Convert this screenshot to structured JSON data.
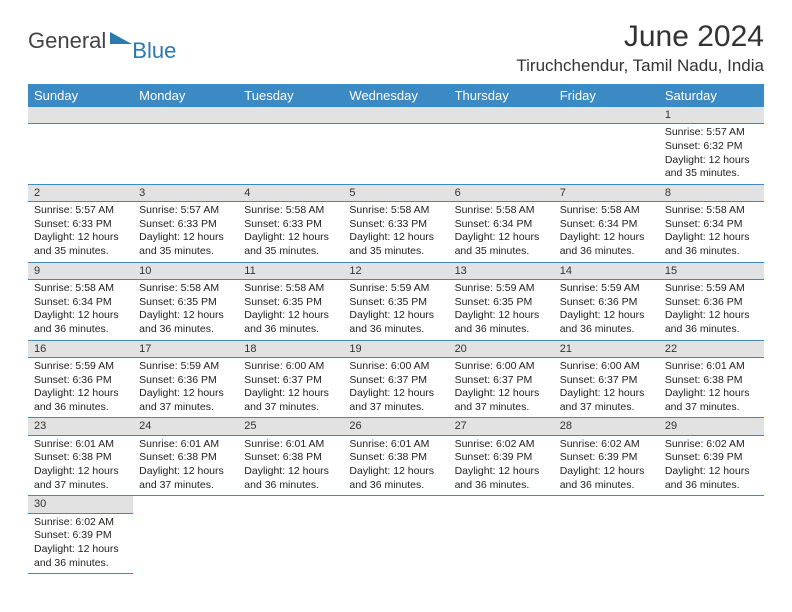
{
  "logo": {
    "text1": "General",
    "text2": "Blue",
    "color1": "#444444",
    "color2": "#2a7ab0"
  },
  "title": "June 2024",
  "location": "Tiruchchendur, Tamil Nadu, India",
  "calendar": {
    "header_bg": "#3b8ac4",
    "header_fg": "#ffffff",
    "daynum_bg": "#e2e2e2",
    "cell_bg": "#ffffff",
    "border_color": "#3b8ac4",
    "font_size_header": 13,
    "font_size_daynum": 11,
    "font_size_detail": 10.5,
    "columns": [
      "Sunday",
      "Monday",
      "Tuesday",
      "Wednesday",
      "Thursday",
      "Friday",
      "Saturday"
    ],
    "weeks": [
      [
        null,
        null,
        null,
        null,
        null,
        null,
        {
          "d": "1",
          "sr": "5:57 AM",
          "ss": "6:32 PM",
          "dl": "12 hours and 35 minutes."
        }
      ],
      [
        {
          "d": "2",
          "sr": "5:57 AM",
          "ss": "6:33 PM",
          "dl": "12 hours and 35 minutes."
        },
        {
          "d": "3",
          "sr": "5:57 AM",
          "ss": "6:33 PM",
          "dl": "12 hours and 35 minutes."
        },
        {
          "d": "4",
          "sr": "5:58 AM",
          "ss": "6:33 PM",
          "dl": "12 hours and 35 minutes."
        },
        {
          "d": "5",
          "sr": "5:58 AM",
          "ss": "6:33 PM",
          "dl": "12 hours and 35 minutes."
        },
        {
          "d": "6",
          "sr": "5:58 AM",
          "ss": "6:34 PM",
          "dl": "12 hours and 35 minutes."
        },
        {
          "d": "7",
          "sr": "5:58 AM",
          "ss": "6:34 PM",
          "dl": "12 hours and 36 minutes."
        },
        {
          "d": "8",
          "sr": "5:58 AM",
          "ss": "6:34 PM",
          "dl": "12 hours and 36 minutes."
        }
      ],
      [
        {
          "d": "9",
          "sr": "5:58 AM",
          "ss": "6:34 PM",
          "dl": "12 hours and 36 minutes."
        },
        {
          "d": "10",
          "sr": "5:58 AM",
          "ss": "6:35 PM",
          "dl": "12 hours and 36 minutes."
        },
        {
          "d": "11",
          "sr": "5:58 AM",
          "ss": "6:35 PM",
          "dl": "12 hours and 36 minutes."
        },
        {
          "d": "12",
          "sr": "5:59 AM",
          "ss": "6:35 PM",
          "dl": "12 hours and 36 minutes."
        },
        {
          "d": "13",
          "sr": "5:59 AM",
          "ss": "6:35 PM",
          "dl": "12 hours and 36 minutes."
        },
        {
          "d": "14",
          "sr": "5:59 AM",
          "ss": "6:36 PM",
          "dl": "12 hours and 36 minutes."
        },
        {
          "d": "15",
          "sr": "5:59 AM",
          "ss": "6:36 PM",
          "dl": "12 hours and 36 minutes."
        }
      ],
      [
        {
          "d": "16",
          "sr": "5:59 AM",
          "ss": "6:36 PM",
          "dl": "12 hours and 36 minutes."
        },
        {
          "d": "17",
          "sr": "5:59 AM",
          "ss": "6:36 PM",
          "dl": "12 hours and 37 minutes."
        },
        {
          "d": "18",
          "sr": "6:00 AM",
          "ss": "6:37 PM",
          "dl": "12 hours and 37 minutes."
        },
        {
          "d": "19",
          "sr": "6:00 AM",
          "ss": "6:37 PM",
          "dl": "12 hours and 37 minutes."
        },
        {
          "d": "20",
          "sr": "6:00 AM",
          "ss": "6:37 PM",
          "dl": "12 hours and 37 minutes."
        },
        {
          "d": "21",
          "sr": "6:00 AM",
          "ss": "6:37 PM",
          "dl": "12 hours and 37 minutes."
        },
        {
          "d": "22",
          "sr": "6:01 AM",
          "ss": "6:38 PM",
          "dl": "12 hours and 37 minutes."
        }
      ],
      [
        {
          "d": "23",
          "sr": "6:01 AM",
          "ss": "6:38 PM",
          "dl": "12 hours and 37 minutes."
        },
        {
          "d": "24",
          "sr": "6:01 AM",
          "ss": "6:38 PM",
          "dl": "12 hours and 37 minutes."
        },
        {
          "d": "25",
          "sr": "6:01 AM",
          "ss": "6:38 PM",
          "dl": "12 hours and 36 minutes."
        },
        {
          "d": "26",
          "sr": "6:01 AM",
          "ss": "6:38 PM",
          "dl": "12 hours and 36 minutes."
        },
        {
          "d": "27",
          "sr": "6:02 AM",
          "ss": "6:39 PM",
          "dl": "12 hours and 36 minutes."
        },
        {
          "d": "28",
          "sr": "6:02 AM",
          "ss": "6:39 PM",
          "dl": "12 hours and 36 minutes."
        },
        {
          "d": "29",
          "sr": "6:02 AM",
          "ss": "6:39 PM",
          "dl": "12 hours and 36 minutes."
        }
      ],
      [
        {
          "d": "30",
          "sr": "6:02 AM",
          "ss": "6:39 PM",
          "dl": "12 hours and 36 minutes."
        },
        null,
        null,
        null,
        null,
        null,
        null
      ]
    ],
    "labels": {
      "sunrise": "Sunrise:",
      "sunset": "Sunset:",
      "daylight": "Daylight:"
    }
  }
}
